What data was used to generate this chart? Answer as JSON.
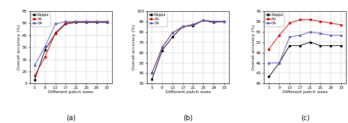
{
  "x": [
    5,
    9,
    13,
    17,
    21,
    25,
    29,
    33
  ],
  "subplots": [
    {
      "label": "(a)",
      "ylabel": "Overall accuracy (%)",
      "xlabel": "Different patch sizes",
      "ylim": [
        5,
        95
      ],
      "yticks": [
        5,
        20,
        35,
        50,
        65,
        80,
        95
      ],
      "series": {
        "Kappa": [
          10,
          47,
          67,
          79,
          81,
          81,
          81,
          81
        ],
        "AA": [
          15,
          38,
          68,
          80,
          82,
          82,
          82,
          82
        ],
        "OA": [
          28,
          51,
          79,
          82,
          82,
          82,
          82,
          82
        ]
      }
    },
    {
      "label": "(b)",
      "ylabel": "Overall accuracy (%)",
      "xlabel": "Different patch sizes",
      "ylim": [
        30,
        100
      ],
      "yticks": [
        30,
        40,
        50,
        60,
        70,
        80,
        90,
        100
      ],
      "series": {
        "Kappa": [
          34,
          62,
          75,
          85,
          86,
          91,
          89,
          90
        ],
        "AA": [
          40,
          65,
          79,
          85,
          87,
          91,
          90,
          90
        ],
        "OA": [
          40,
          65,
          79,
          85,
          87,
          91,
          90,
          90
        ]
      }
    },
    {
      "label": "(c)",
      "ylabel": "Overall accuracy (%)",
      "xlabel": "Different patch sizes",
      "ylim": [
        40,
        61
      ],
      "yticks": [
        40,
        43,
        46,
        49,
        52,
        55,
        58,
        61
      ],
      "series": {
        "Kappa": [
          42,
          46,
          51,
          51,
          52,
          51,
          51,
          51
        ],
        "AA": [
          50,
          54,
          57.5,
          58.5,
          58.5,
          58,
          57.5,
          57
        ],
        "OA": [
          46,
          46,
          53.5,
          54,
          55,
          54.5,
          54,
          54
        ]
      }
    }
  ],
  "colors": {
    "Kappa": "#000000",
    "AA": "#cc0000",
    "OA": "#5555bb"
  },
  "markers": {
    "Kappa": "s",
    "AA": "s",
    "OA": "x"
  }
}
